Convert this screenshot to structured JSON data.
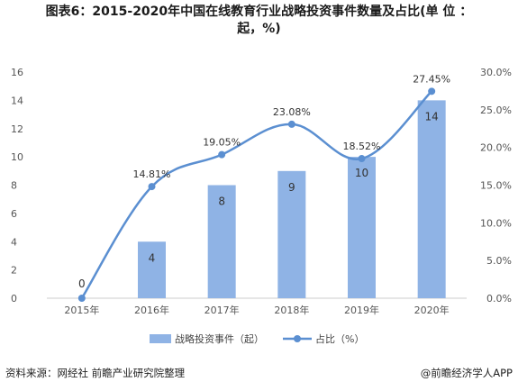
{
  "title_line1": "图表6：2015-2020年中国在线教育行业战略投资事件数量及占比(单 位 ：",
  "title_line2": "起，%)",
  "source": "资料来源：网经社 前瞻产业研究院整理",
  "brand": "@前瞻经济学人APP",
  "colors": {
    "bar": "#8fb3e5",
    "line": "#5b8fd1",
    "axis": "#cccccc",
    "text": "#333333"
  },
  "chart_data": {
    "type": "bar",
    "categories": [
      "2015年",
      "2016年",
      "2017年",
      "2018年",
      "2019年",
      "2020年"
    ],
    "series": [
      {
        "name": "战略投资事件（起）",
        "type": "bar",
        "axis": "left",
        "values": [
          0,
          4,
          8,
          9,
          10,
          14
        ],
        "labels": [
          "0",
          "4",
          "8",
          "9",
          "10",
          "14"
        ]
      },
      {
        "name": "占比（%）",
        "type": "line",
        "axis": "right",
        "values": [
          0,
          14.81,
          19.05,
          23.08,
          18.52,
          27.45
        ],
        "labels": [
          "",
          "14.81%",
          "19.05%",
          "23.08%",
          "18.52%",
          "27.45%"
        ]
      }
    ],
    "y_left": {
      "ticks": [
        "0",
        "2",
        "4",
        "6",
        "8",
        "10",
        "12",
        "14",
        "16"
      ],
      "ylim": [
        0,
        16
      ]
    },
    "y_right": {
      "ticks": [
        "0.0%",
        "5.0%",
        "10.0%",
        "15.0%",
        "20.0%",
        "25.0%",
        "30.0%"
      ],
      "ylim": [
        0,
        30
      ]
    },
    "grid": false,
    "legend": "bottom"
  }
}
